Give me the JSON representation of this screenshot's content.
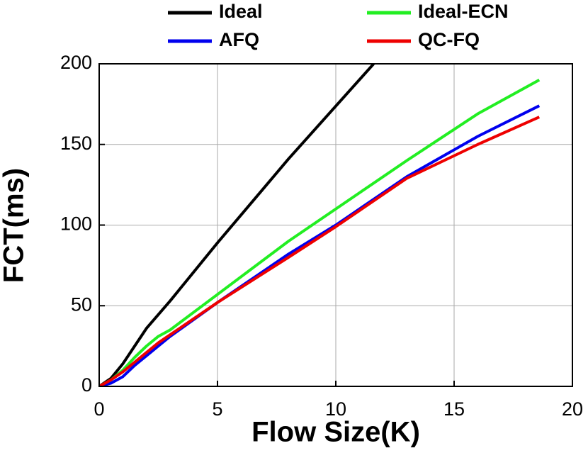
{
  "chart_data": {
    "type": "line",
    "x_label": "Flow Size(K)",
    "y_label": "FCT(ms)",
    "xlim": [
      0,
      20
    ],
    "xticks": [
      0,
      5,
      10,
      15,
      20
    ],
    "ylim": [
      0,
      200
    ],
    "yticks": [
      0,
      50,
      100,
      150,
      200
    ],
    "grid": true,
    "series": [
      {
        "name": "Ideal",
        "color": "#000000",
        "x": [
          0,
          0.5,
          1,
          1.5,
          2,
          3,
          5,
          8,
          11.6
        ],
        "values": [
          0,
          5,
          14,
          25,
          36,
          53,
          89,
          141,
          200
        ]
      },
      {
        "name": "Ideal-ECN",
        "color": "#22ee22",
        "x": [
          0,
          0.5,
          1,
          1.5,
          2,
          2.5,
          3,
          5,
          8,
          11,
          13,
          16,
          18.6
        ],
        "values": [
          0,
          4,
          10,
          18,
          25,
          31,
          35,
          57,
          90,
          120,
          140,
          169,
          190
        ]
      },
      {
        "name": "AFQ",
        "color": "#0000ee",
        "x": [
          0,
          0.5,
          1,
          1.5,
          2,
          2.5,
          3,
          5,
          8,
          10,
          13,
          16,
          18.6
        ],
        "values": [
          0,
          2,
          6,
          13,
          19,
          25,
          31,
          52,
          82,
          100,
          130,
          155,
          174
        ]
      },
      {
        "name": "QC-FQ",
        "color": "#ee0000",
        "x": [
          0,
          0.5,
          1,
          1.5,
          2,
          2.5,
          3,
          5,
          8,
          10,
          13,
          16,
          18.6
        ],
        "values": [
          0,
          4,
          9,
          15,
          21,
          27,
          32,
          52,
          80,
          99,
          129,
          150,
          167
        ]
      }
    ]
  }
}
